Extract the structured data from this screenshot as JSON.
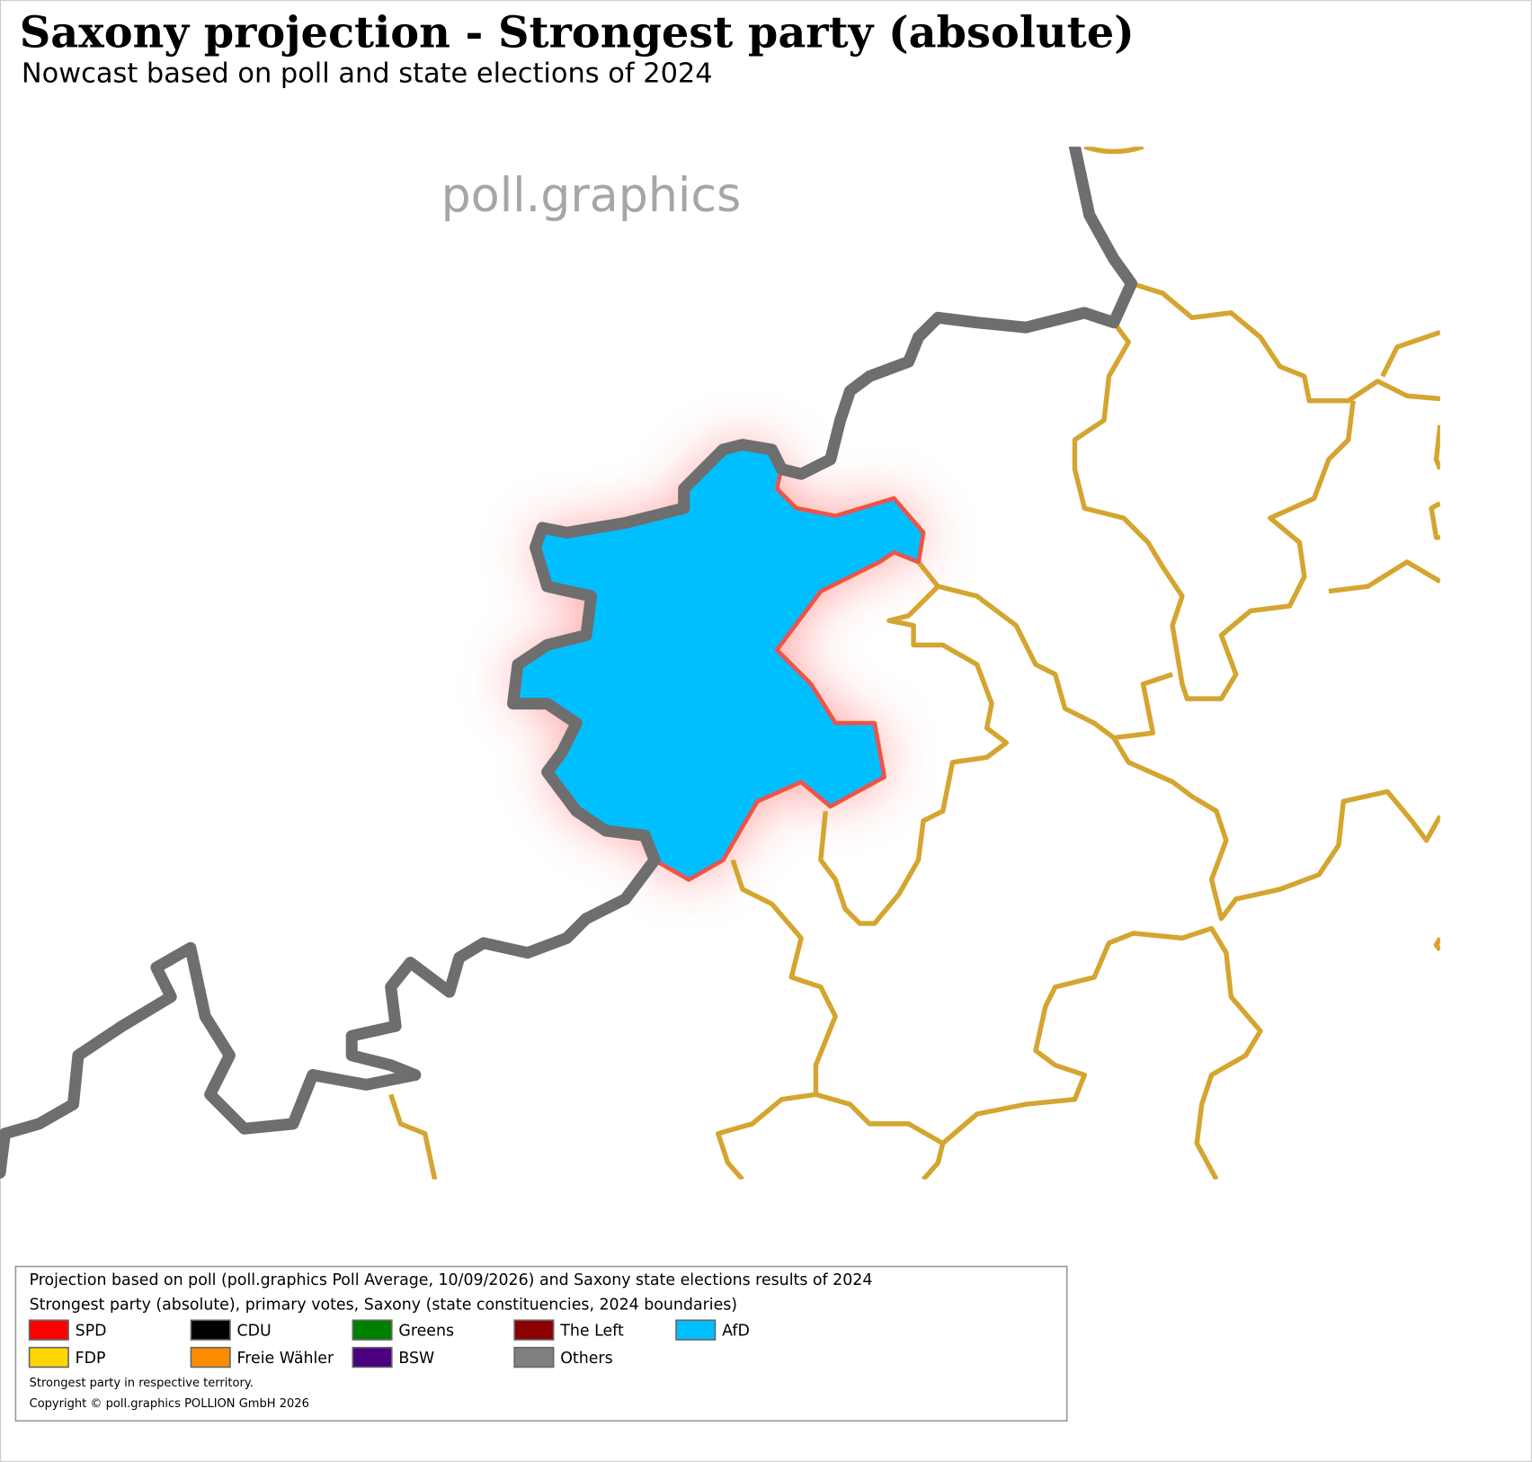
{
  "header": {
    "title": "Saxony projection - Strongest party (absolute)",
    "subtitle": "Nowcast based on poll and state elections of 2024"
  },
  "watermark": "poll.graphics",
  "legend": {
    "lines": [
      "Projection based on poll (poll.graphics Poll Average, 10/09/2026) and Saxony state elections results of 2024",
      "Strongest party (absolute), primary votes, Saxony (state constituencies, 2024 boundaries)"
    ],
    "items": [
      {
        "name": "SPD",
        "color": "#ff0000"
      },
      {
        "name": "CDU",
        "color": "#000000"
      },
      {
        "name": "Greens",
        "color": "#008000"
      },
      {
        "name": "The Left",
        "color": "#8b0000"
      },
      {
        "name": "AfD",
        "color": "#00bfff"
      },
      {
        "name": "FDP",
        "color": "#ffd700"
      },
      {
        "name": "Freie Wähler",
        "color": "#ff8c00"
      },
      {
        "name": "BSW",
        "color": "#4b0082"
      },
      {
        "name": "Others",
        "color": "#808080"
      }
    ],
    "notes": [
      "Strongest party in respective territory.",
      "Copyright © poll.graphics POLLION GmbH 2026"
    ]
  }
}
